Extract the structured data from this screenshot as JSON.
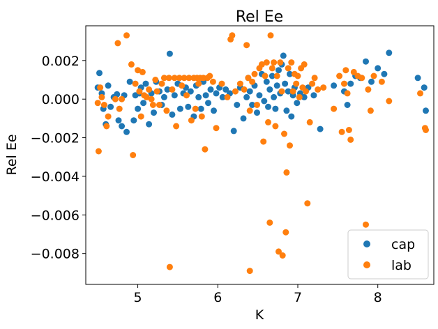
{
  "chart_data": {
    "type": "scatter",
    "title": "Rel Ee",
    "xlabel": "K",
    "ylabel": "Rel Ee",
    "xlim": [
      4.35,
      8.7
    ],
    "ylim": [
      -0.0096,
      0.0038
    ],
    "xticks": [
      5,
      6,
      7,
      8
    ],
    "xtick_labels": [
      "5",
      "6",
      "7",
      "8"
    ],
    "yticks": [
      -0.008,
      -0.006,
      -0.004,
      -0.002,
      0.0,
      0.002
    ],
    "ytick_labels": [
      "−0.008",
      "−0.006",
      "−0.004",
      "−0.002",
      "0.000",
      "0.002"
    ],
    "grid": false,
    "legend_position": "lower-right",
    "series": [
      {
        "name": "cap",
        "color": "#1f77b4",
        "points": [
          [
            4.5,
            0.0006
          ],
          [
            4.52,
            0.00135
          ],
          [
            4.55,
            0.0003
          ],
          [
            4.57,
            -0.0005
          ],
          [
            4.6,
            -0.0013
          ],
          [
            4.63,
            0.0007
          ],
          [
            4.66,
            -0.0004
          ],
          [
            4.7,
            0.0001
          ],
          [
            4.74,
            0.00025
          ],
          [
            4.76,
            -0.0011
          ],
          [
            4.8,
            -0.0014
          ],
          [
            4.83,
            0.0002
          ],
          [
            4.86,
            -0.0017
          ],
          [
            4.9,
            0.0009
          ],
          [
            4.95,
            -0.0011
          ],
          [
            4.97,
            0.0002
          ],
          [
            5.0,
            -0.0005
          ],
          [
            5.02,
            0.0003
          ],
          [
            5.04,
            0.0006
          ],
          [
            5.07,
            -0.0002
          ],
          [
            5.1,
            0.0008
          ],
          [
            5.14,
            -0.0013
          ],
          [
            5.17,
            0.0003
          ],
          [
            5.2,
            -0.0007
          ],
          [
            5.23,
            0.0009
          ],
          [
            5.27,
            0.0004
          ],
          [
            5.3,
            -0.0003
          ],
          [
            5.33,
            0.0001
          ],
          [
            5.37,
            0.0005
          ],
          [
            5.4,
            0.00235
          ],
          [
            5.43,
            -0.0008
          ],
          [
            5.46,
            0.0002
          ],
          [
            5.5,
            0.0008
          ],
          [
            5.53,
            -0.0005
          ],
          [
            5.57,
            0.0003
          ],
          [
            5.6,
            0.0006
          ],
          [
            5.63,
            -0.0004
          ],
          [
            5.66,
            0.0004
          ],
          [
            5.7,
            -0.0009
          ],
          [
            5.73,
            0.0007
          ],
          [
            5.76,
            0.0001
          ],
          [
            5.79,
            -0.0005
          ],
          [
            5.82,
            0.0009
          ],
          [
            5.85,
            0.0002
          ],
          [
            5.88,
            -0.0002
          ],
          [
            5.91,
            0.0005
          ],
          [
            5.95,
            -0.0006
          ],
          [
            5.98,
            0.0003
          ],
          [
            6.02,
            0.0006
          ],
          [
            6.06,
            0.0001
          ],
          [
            6.1,
            0.0005
          ],
          [
            6.15,
            0.0003
          ],
          [
            6.2,
            -0.00165
          ],
          [
            6.24,
            -0.0003
          ],
          [
            6.28,
            0.0006
          ],
          [
            6.32,
            -0.001
          ],
          [
            6.36,
            0.0001
          ],
          [
            6.38,
            0.0011
          ],
          [
            6.4,
            0.0004
          ],
          [
            6.43,
            -0.0003
          ],
          [
            6.46,
            0.0007
          ],
          [
            6.49,
            -0.0007
          ],
          [
            6.52,
            0.0002
          ],
          [
            6.55,
            0.0013
          ],
          [
            6.58,
            -0.0001
          ],
          [
            6.61,
            0.0009
          ],
          [
            6.63,
            -0.0004
          ],
          [
            6.65,
            0.0005
          ],
          [
            6.68,
            0.0012
          ],
          [
            6.7,
            0.0001
          ],
          [
            6.72,
            -0.0005
          ],
          [
            6.74,
            0.0007
          ],
          [
            6.76,
            0.0015
          ],
          [
            6.78,
            0.0003
          ],
          [
            6.8,
            0.0018
          ],
          [
            6.82,
            0.00225
          ],
          [
            6.84,
            0.0008
          ],
          [
            6.86,
            -0.0006
          ],
          [
            6.88,
            0.0004
          ],
          [
            6.9,
            0.0013
          ],
          [
            6.92,
            -0.0009
          ],
          [
            6.94,
            0.0002
          ],
          [
            6.96,
            0.0006
          ],
          [
            6.99,
            -0.0002
          ],
          [
            7.03,
            0.0003
          ],
          [
            7.08,
            0.0001
          ],
          [
            7.13,
            0.0006
          ],
          [
            7.2,
            0.0002
          ],
          [
            7.28,
            -0.00155
          ],
          [
            7.45,
            0.0007
          ],
          [
            7.58,
            0.0004
          ],
          [
            7.62,
            -0.0003
          ],
          [
            7.66,
            0.0008
          ],
          [
            7.72,
            0.0012
          ],
          [
            7.78,
            0.0011
          ],
          [
            7.85,
            0.00195
          ],
          [
            7.92,
            0.0009
          ],
          [
            8.0,
            0.0016
          ],
          [
            8.08,
            0.0013
          ],
          [
            8.14,
            0.0024
          ],
          [
            8.5,
            0.0011
          ],
          [
            8.58,
            0.0006
          ],
          [
            8.6,
            -0.0006
          ]
        ]
      },
      {
        "name": "lab",
        "color": "#ff7f0e",
        "points": [
          [
            4.5,
            -0.0002
          ],
          [
            4.51,
            -0.0027
          ],
          [
            4.53,
            0.0006
          ],
          [
            4.55,
            0.0001
          ],
          [
            4.58,
            -0.0003
          ],
          [
            4.61,
            -0.0014
          ],
          [
            4.63,
            -0.0009
          ],
          [
            4.72,
            0.0
          ],
          [
            4.75,
            0.0029
          ],
          [
            4.77,
            -0.0005
          ],
          [
            4.8,
            0.0
          ],
          [
            4.86,
            0.0033
          ],
          [
            4.92,
            0.0018
          ],
          [
            4.94,
            -0.0029
          ],
          [
            4.97,
            0.0008
          ],
          [
            5.0,
            0.0015
          ],
          [
            5.02,
            0.0004
          ],
          [
            5.04,
            -0.0009
          ],
          [
            5.06,
            0.0014
          ],
          [
            5.08,
            0.0002
          ],
          [
            5.11,
            0.0001
          ],
          [
            5.14,
            0.0005
          ],
          [
            5.17,
            0.0
          ],
          [
            5.19,
            -0.0003
          ],
          [
            5.22,
            0.001
          ],
          [
            5.24,
            0.0004
          ],
          [
            5.27,
            -0.0003
          ],
          [
            5.3,
            0.0008
          ],
          [
            5.33,
            0.0011
          ],
          [
            5.36,
            -0.0006
          ],
          [
            5.39,
            0.0011
          ],
          [
            5.4,
            -0.0087
          ],
          [
            5.43,
            0.0005
          ],
          [
            5.46,
            0.0011
          ],
          [
            5.48,
            -0.0014
          ],
          [
            5.52,
            0.0011
          ],
          [
            5.55,
            0.0007
          ],
          [
            5.58,
            0.0011
          ],
          [
            5.61,
            0.0002
          ],
          [
            5.64,
            0.0011
          ],
          [
            5.67,
            -0.0011
          ],
          [
            5.7,
            0.0011
          ],
          [
            5.72,
            -0.0005
          ],
          [
            5.74,
            0.0011
          ],
          [
            5.76,
            0.0008
          ],
          [
            5.78,
            0.0011
          ],
          [
            5.8,
            -0.0009
          ],
          [
            5.82,
            0.0011
          ],
          [
            5.84,
            -0.0026
          ],
          [
            5.87,
            0.0011
          ],
          [
            5.9,
            0.0012
          ],
          [
            5.94,
            0.0009
          ],
          [
            5.98,
            -0.0015
          ],
          [
            6.05,
            0.0008
          ],
          [
            6.12,
            0.0001
          ],
          [
            6.16,
            0.0031
          ],
          [
            6.18,
            0.0033
          ],
          [
            6.22,
            0.0004
          ],
          [
            6.28,
            0.0008
          ],
          [
            6.33,
            0.0005
          ],
          [
            6.36,
            0.0028
          ],
          [
            6.38,
            0.0011
          ],
          [
            6.4,
            -0.0089
          ],
          [
            6.4,
            -0.0006
          ],
          [
            6.43,
            0.0009
          ],
          [
            6.46,
            0.0013
          ],
          [
            6.49,
            -0.0003
          ],
          [
            6.52,
            0.0016
          ],
          [
            6.55,
            0.0018
          ],
          [
            6.57,
            -0.0022
          ],
          [
            6.59,
            0.0012
          ],
          [
            6.61,
            0.0019
          ],
          [
            6.63,
            -0.0012
          ],
          [
            6.65,
            -0.0064
          ],
          [
            6.66,
            0.0033
          ],
          [
            6.68,
            0.0016
          ],
          [
            6.7,
            0.0019
          ],
          [
            6.72,
            -0.0014
          ],
          [
            6.74,
            0.0012
          ],
          [
            6.76,
            -0.0079
          ],
          [
            6.78,
            0.0019
          ],
          [
            6.8,
            0.0004
          ],
          [
            6.81,
            -0.0081
          ],
          [
            6.83,
            -0.0018
          ],
          [
            6.85,
            -0.0069
          ],
          [
            6.86,
            -0.0038
          ],
          [
            6.88,
            0.0016
          ],
          [
            6.9,
            -0.0024
          ],
          [
            6.92,
            0.0019
          ],
          [
            6.94,
            0.0004
          ],
          [
            6.96,
            0.0013
          ],
          [
            6.98,
            0.0008
          ],
          [
            7.0,
            0.0012
          ],
          [
            7.02,
            0.0001
          ],
          [
            7.04,
            0.0016
          ],
          [
            7.06,
            0.0006
          ],
          [
            7.08,
            0.0018
          ],
          [
            7.1,
            0.0004
          ],
          [
            7.12,
            -0.0054
          ],
          [
            7.15,
            -0.0012
          ],
          [
            7.18,
            0.0008
          ],
          [
            7.21,
            0.0011
          ],
          [
            7.25,
            0.0005
          ],
          [
            7.32,
            0.0006
          ],
          [
            7.45,
            -0.0005
          ],
          [
            7.52,
            0.0012
          ],
          [
            7.55,
            -0.0017
          ],
          [
            7.58,
            0.0008
          ],
          [
            7.6,
            0.0015
          ],
          [
            7.62,
            0.0003
          ],
          [
            7.64,
            -0.0016
          ],
          [
            7.66,
            -0.0021
          ],
          [
            7.7,
            0.0014
          ],
          [
            7.75,
            0.0012
          ],
          [
            7.8,
            0.0011
          ],
          [
            7.85,
            -0.0065
          ],
          [
            7.88,
            0.0005
          ],
          [
            7.91,
            -0.0006
          ],
          [
            7.95,
            0.0012
          ],
          [
            8.05,
            0.0009
          ],
          [
            8.14,
            -0.0001
          ],
          [
            8.53,
            0.0003
          ],
          [
            8.59,
            -0.0015
          ],
          [
            8.6,
            -0.0016
          ]
        ]
      }
    ]
  }
}
